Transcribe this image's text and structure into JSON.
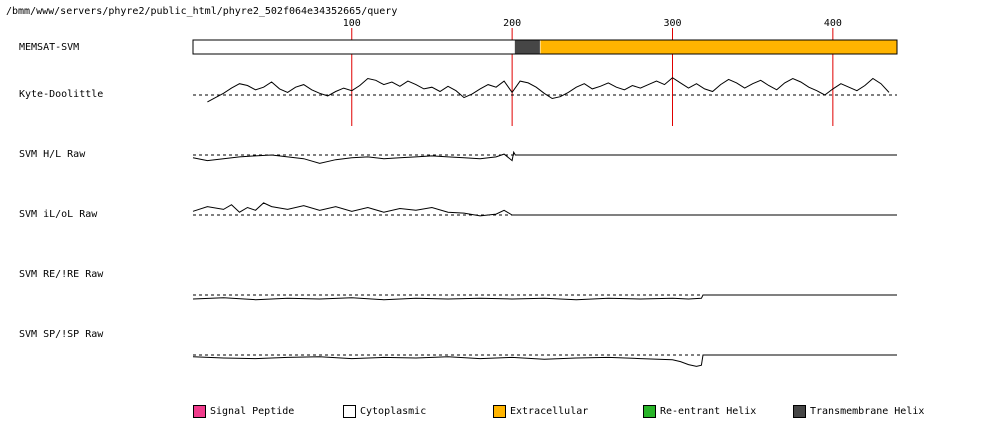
{
  "header": {
    "path": "/bmm/www/servers/phyre2/public_html/phyre2_502f064e34352665/query"
  },
  "colors": {
    "signal_peptide": "#f03c8c",
    "cytoplasmic": "#ffffff",
    "extracellular": "#ffb400",
    "reentrant_helix": "#28b428",
    "transmembrane_helix": "#464646",
    "tick_line": "#e00000"
  },
  "chart_data": {
    "type": "line",
    "sequence_length": 440,
    "x_ticks": [
      100,
      200,
      300,
      400
    ],
    "tick_labels": [
      "100",
      "200",
      "300",
      "400"
    ],
    "tracks": [
      {
        "name": "MEMSAT-SVM",
        "kind": "topology",
        "segments": [
          {
            "start": 1,
            "end": 201,
            "type": "cytoplasmic"
          },
          {
            "start": 202,
            "end": 217,
            "type": "transmembrane_helix"
          },
          {
            "start": 218,
            "end": 440,
            "type": "extracellular"
          }
        ]
      },
      {
        "name": "Kyte-Doolittle",
        "kind": "profile",
        "x": [
          10,
          15,
          20,
          25,
          30,
          35,
          40,
          45,
          50,
          55,
          60,
          65,
          70,
          75,
          80,
          85,
          90,
          95,
          100,
          105,
          110,
          115,
          120,
          125,
          130,
          135,
          140,
          145,
          150,
          155,
          160,
          165,
          170,
          175,
          180,
          185,
          190,
          195,
          200,
          205,
          210,
          215,
          220,
          225,
          230,
          235,
          240,
          245,
          250,
          255,
          260,
          265,
          270,
          275,
          280,
          285,
          290,
          295,
          300,
          305,
          310,
          315,
          320,
          325,
          330,
          335,
          340,
          345,
          350,
          355,
          360,
          365,
          370,
          375,
          380,
          385,
          390,
          395,
          400,
          405,
          410,
          415,
          420,
          425,
          430,
          435
        ],
        "values": [
          -0.8,
          -0.3,
          0.2,
          0.8,
          1.3,
          1.1,
          0.6,
          0.9,
          1.5,
          0.7,
          0.3,
          0.9,
          1.2,
          0.6,
          0.2,
          -0.1,
          0.4,
          0.8,
          0.5,
          1.1,
          1.9,
          1.7,
          1.2,
          1.5,
          1.0,
          1.6,
          1.2,
          0.7,
          0.9,
          0.4,
          1.0,
          0.5,
          -0.3,
          0.1,
          0.7,
          1.2,
          0.9,
          1.6,
          0.3,
          1.6,
          1.4,
          0.9,
          0.2,
          -0.4,
          -0.2,
          0.3,
          0.9,
          1.3,
          0.7,
          1.0,
          1.4,
          0.9,
          0.6,
          1.1,
          0.8,
          1.2,
          1.6,
          1.2,
          2.0,
          1.4,
          0.8,
          1.3,
          0.7,
          0.4,
          1.2,
          1.8,
          1.4,
          0.8,
          1.3,
          1.7,
          1.1,
          0.6,
          1.4,
          1.9,
          1.5,
          0.9,
          0.5,
          0.0,
          0.7,
          1.3,
          0.9,
          0.5,
          1.1,
          1.9,
          1.3,
          0.3
        ],
        "baseline": 0,
        "ylim": [
          -2,
          3
        ]
      },
      {
        "name": "SVM H/L Raw",
        "kind": "profile",
        "x": [
          1,
          10,
          20,
          30,
          40,
          50,
          60,
          70,
          80,
          90,
          100,
          110,
          120,
          130,
          140,
          150,
          160,
          170,
          180,
          190,
          195,
          200,
          201,
          202,
          440
        ],
        "values": [
          -0.3,
          -0.6,
          -0.4,
          -0.2,
          -0.1,
          0.0,
          -0.2,
          -0.4,
          -0.9,
          -0.5,
          -0.3,
          -0.2,
          -0.4,
          -0.3,
          -0.2,
          -0.1,
          -0.2,
          -0.3,
          -0.4,
          -0.2,
          0.1,
          -0.6,
          0.3,
          0.0,
          0.0
        ],
        "baseline": 0,
        "ylim": [
          -1.5,
          1.5
        ]
      },
      {
        "name": "SVM iL/oL Raw",
        "kind": "profile",
        "x": [
          1,
          10,
          20,
          25,
          30,
          35,
          40,
          45,
          50,
          60,
          70,
          80,
          90,
          100,
          110,
          120,
          130,
          140,
          150,
          160,
          170,
          180,
          190,
          195,
          200,
          201,
          440
        ],
        "values": [
          0.4,
          0.9,
          0.6,
          1.1,
          0.3,
          0.8,
          0.5,
          1.3,
          0.9,
          0.6,
          1.0,
          0.5,
          0.9,
          0.4,
          0.8,
          0.3,
          0.7,
          0.5,
          0.8,
          0.3,
          0.2,
          -0.1,
          0.1,
          0.5,
          0.0,
          0.0,
          0.0
        ],
        "baseline": 0,
        "ylim": [
          -1.5,
          1.5
        ]
      },
      {
        "name": "SVM RE/!RE Raw",
        "kind": "profile",
        "x": [
          1,
          20,
          40,
          60,
          80,
          100,
          120,
          140,
          160,
          180,
          200,
          220,
          240,
          260,
          280,
          300,
          310,
          318,
          319,
          440
        ],
        "values": [
          -0.6,
          -0.4,
          -0.7,
          -0.5,
          -0.6,
          -0.4,
          -0.7,
          -0.5,
          -0.6,
          -0.5,
          -0.6,
          -0.5,
          -0.7,
          -0.5,
          -0.6,
          -0.5,
          -0.6,
          -0.5,
          0.0,
          0.0
        ],
        "baseline": 0,
        "ylim": [
          -1.5,
          1.5
        ]
      },
      {
        "name": "SVM SP/!SP Raw",
        "kind": "profile",
        "x": [
          1,
          20,
          40,
          60,
          80,
          100,
          120,
          140,
          160,
          180,
          200,
          220,
          240,
          260,
          280,
          300,
          305,
          310,
          315,
          318,
          319,
          440
        ],
        "values": [
          -0.3,
          -0.5,
          -0.6,
          -0.4,
          -0.3,
          -0.6,
          -0.4,
          -0.5,
          -0.3,
          -0.6,
          -0.4,
          -0.7,
          -0.5,
          -0.4,
          -0.6,
          -0.8,
          -1.1,
          -1.6,
          -1.9,
          -1.7,
          0.0,
          0.0
        ],
        "baseline": 0,
        "ylim": [
          -2,
          2
        ]
      }
    ],
    "legend": [
      {
        "label": "Signal Peptide",
        "color_key": "signal_peptide"
      },
      {
        "label": "Cytoplasmic",
        "color_key": "cytoplasmic"
      },
      {
        "label": "Extracellular",
        "color_key": "extracellular"
      },
      {
        "label": "Re-entrant Helix",
        "color_key": "reentrant_helix"
      },
      {
        "label": "Transmembrane Helix",
        "color_key": "transmembrane_helix"
      }
    ]
  }
}
